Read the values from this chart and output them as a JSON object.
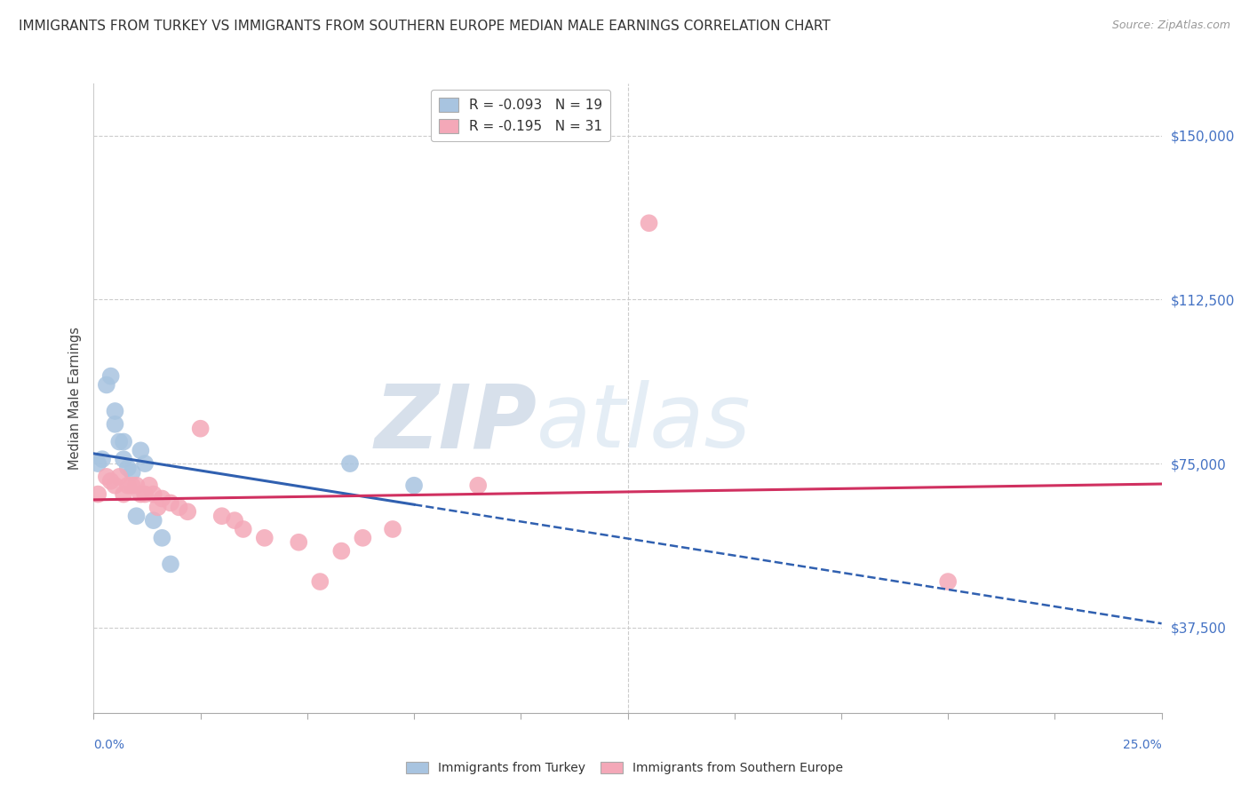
{
  "title": "IMMIGRANTS FROM TURKEY VS IMMIGRANTS FROM SOUTHERN EUROPE MEDIAN MALE EARNINGS CORRELATION CHART",
  "source": "Source: ZipAtlas.com",
  "ylabel": "Median Male Earnings",
  "yticks": [
    37500,
    75000,
    112500,
    150000
  ],
  "ytick_labels": [
    "$37,500",
    "$75,000",
    "$112,500",
    "$150,000"
  ],
  "xmin": 0.0,
  "xmax": 0.25,
  "ymin": 18000,
  "ymax": 162000,
  "legend_turkey_R": "R = -0.093",
  "legend_turkey_N": "N = 19",
  "legend_se_R": "R = -0.195",
  "legend_se_N": "N = 31",
  "turkey_fill_color": "#a8c4e0",
  "turkey_line_color": "#3060b0",
  "se_fill_color": "#f4a8b8",
  "se_line_color": "#d03060",
  "turkey_scatter_x": [
    0.001,
    0.002,
    0.003,
    0.004,
    0.005,
    0.005,
    0.006,
    0.007,
    0.007,
    0.008,
    0.009,
    0.01,
    0.011,
    0.012,
    0.014,
    0.016,
    0.018,
    0.06,
    0.075
  ],
  "turkey_scatter_y": [
    75000,
    76000,
    93000,
    95000,
    87000,
    84000,
    80000,
    80000,
    76000,
    74000,
    73000,
    63000,
    78000,
    75000,
    62000,
    58000,
    52000,
    75000,
    70000
  ],
  "se_scatter_x": [
    0.001,
    0.003,
    0.004,
    0.005,
    0.006,
    0.007,
    0.008,
    0.009,
    0.01,
    0.011,
    0.012,
    0.013,
    0.014,
    0.015,
    0.016,
    0.018,
    0.02,
    0.022,
    0.025,
    0.03,
    0.033,
    0.035,
    0.04,
    0.048,
    0.053,
    0.058,
    0.063,
    0.07,
    0.09,
    0.13,
    0.2
  ],
  "se_scatter_y": [
    68000,
    72000,
    71000,
    70000,
    72000,
    68000,
    70000,
    70000,
    70000,
    68000,
    68000,
    70000,
    68000,
    65000,
    67000,
    66000,
    65000,
    64000,
    83000,
    63000,
    62000,
    60000,
    58000,
    57000,
    48000,
    55000,
    58000,
    60000,
    70000,
    130000,
    48000
  ],
  "background_color": "#ffffff",
  "grid_color": "#cccccc",
  "watermark_text": "ZIPatlas",
  "marker_size": 200,
  "title_fontsize": 11,
  "source_fontsize": 9,
  "tick_label_fontsize": 11,
  "ylabel_fontsize": 10.5
}
